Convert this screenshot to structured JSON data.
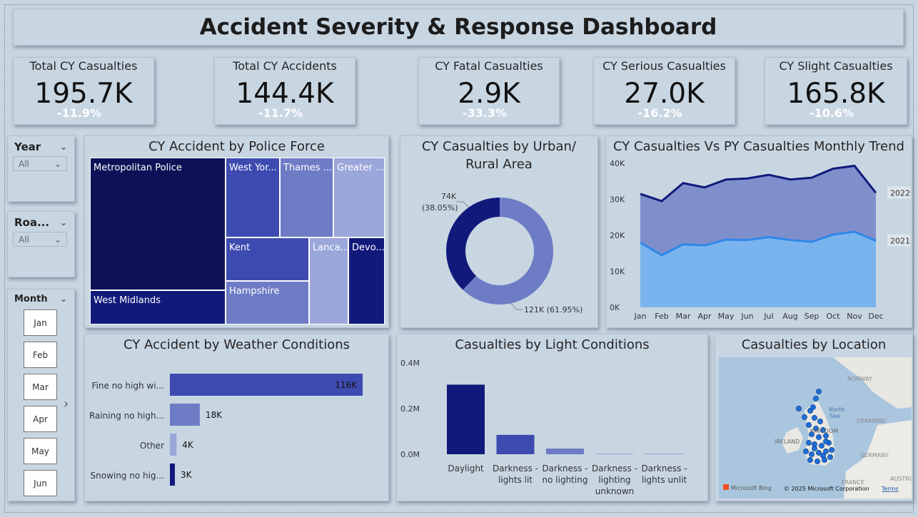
{
  "title": "Accident Severity & Response Dashboard",
  "kpis": [
    {
      "label": "Total CY Casualties",
      "value": "195.7K",
      "delta": "-11.9%"
    },
    {
      "label": "Total CY Accidents",
      "value": "144.4K",
      "delta": "-11.7%"
    },
    {
      "label": "CY Fatal Casualties",
      "value": "2.9K",
      "delta": "-33.3%"
    },
    {
      "label": "CY Serious Casualties",
      "value": "27.0K",
      "delta": "-16.2%"
    },
    {
      "label": "CY Slight Casualties",
      "value": "165.8K",
      "delta": "-10.6%"
    }
  ],
  "slicers": {
    "year": {
      "label": "Year",
      "value": "All"
    },
    "road": {
      "label": "Roa...",
      "value": "All"
    },
    "month": {
      "label": "Month",
      "items": [
        "Jan",
        "Feb",
        "Mar",
        "Apr",
        "May",
        "Jun"
      ]
    }
  },
  "colors": {
    "dark": "#0d1257",
    "navy": "#111a7b",
    "mid": "#3d4bb0",
    "light": "#6e7cc6",
    "pale": "#9ba6da",
    "area_2022": "#7f8fcc",
    "area_2021": "#7ab4ee"
  },
  "chart_data": [
    {
      "type": "treemap",
      "title": "CY Accident by Police Force",
      "categories": [
        "Metropolitan Police",
        "West Midlands",
        "West Yor...",
        "Thames ...",
        "Greater ...",
        "Kent",
        "Hampshire",
        "Lanca...",
        "Devo..."
      ]
    },
    {
      "type": "pie",
      "title": "CY Casualties by Urban/ Rural Area",
      "categories": [
        "",
        ""
      ],
      "values": [
        74,
        121
      ],
      "labels": [
        "74K",
        "(38.05%)",
        "121K (61.95%)"
      ]
    },
    {
      "type": "area",
      "title": "CY Casualties Vs PY Casualties Monthly Trend",
      "categories": [
        "Jan",
        "Feb",
        "Mar",
        "Apr",
        "May",
        "Jun",
        "Jul",
        "Aug",
        "Sep",
        "Oct",
        "Nov",
        "Dec"
      ],
      "series": [
        {
          "name": "2022",
          "values": [
            31500,
            29500,
            34500,
            33300,
            35500,
            35800,
            36800,
            35500,
            36000,
            38500,
            39300,
            31800
          ]
        },
        {
          "name": "2021",
          "values": [
            18000,
            14500,
            17500,
            17200,
            18800,
            18700,
            19500,
            18700,
            18200,
            20200,
            21000,
            18500
          ]
        }
      ],
      "yticks": [
        "40K",
        "30K",
        "20K",
        "10K",
        "0K"
      ],
      "ylim": [
        0,
        40000
      ]
    },
    {
      "type": "bar",
      "orientation": "horizontal",
      "title": "CY Accident by Weather Conditions",
      "categories": [
        "Fine no high wi...",
        "Raining no high...",
        "Other",
        "Snowing no hig..."
      ],
      "values": [
        116,
        18,
        4,
        3
      ],
      "labels": [
        "116K",
        "18K",
        "4K",
        "3K"
      ]
    },
    {
      "type": "bar",
      "title": "Casualties by Light Conditions",
      "categories": [
        [
          "Daylight"
        ],
        [
          "Darkness -",
          "lights lit"
        ],
        [
          "Darkness -",
          "no lighting"
        ],
        [
          "Darkness -",
          "lighting",
          "unknown"
        ],
        [
          "Darkness -",
          "lights unlit"
        ]
      ],
      "values": [
        0.305,
        0.085,
        0.025,
        0.003,
        0.002
      ],
      "yticks": [
        "0.4M",
        "0.2M",
        "0.0M"
      ],
      "ylim": [
        0,
        0.4
      ]
    }
  ],
  "map": {
    "title": "Casualties by Location",
    "places": [
      "NORWAY",
      "North",
      "Sea",
      "DENMARK",
      "IRELAND",
      "KINGDOM",
      "GERMANY",
      "FRANCE",
      "AUSTRIA"
    ],
    "attribution": "© 2025 Microsoft Corporation",
    "terms": "Terms",
    "provider": "Microsoft Bing"
  }
}
